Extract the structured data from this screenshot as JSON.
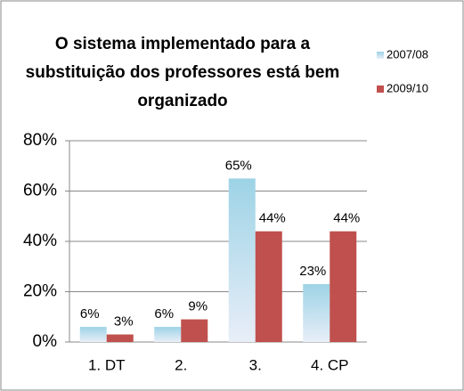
{
  "chart_data": {
    "type": "bar",
    "title": [
      "O sistema implementado para a",
      "substituição dos professores está bem",
      "organizado"
    ],
    "categories": [
      "1. DT",
      "2.",
      "3.",
      "4. CP"
    ],
    "series": [
      {
        "name": "2007/08",
        "color": "#9dd3e6",
        "values": [
          6,
          6,
          65,
          23
        ],
        "value_labels": [
          "6%",
          "6%",
          "65%",
          "23%"
        ]
      },
      {
        "name": "2009/10",
        "color": "#c0504d",
        "values": [
          3,
          9,
          44,
          44
        ],
        "value_labels": [
          "3%",
          "9%",
          "44%",
          "44%"
        ]
      }
    ],
    "ylim": [
      0,
      80
    ],
    "yticks": [
      {
        "value": 0,
        "label": "0%"
      },
      {
        "value": 20,
        "label": "20%"
      },
      {
        "value": 40,
        "label": "40%"
      },
      {
        "value": 60,
        "label": "60%"
      },
      {
        "value": 80,
        "label": "80%"
      }
    ],
    "legend": "right"
  }
}
